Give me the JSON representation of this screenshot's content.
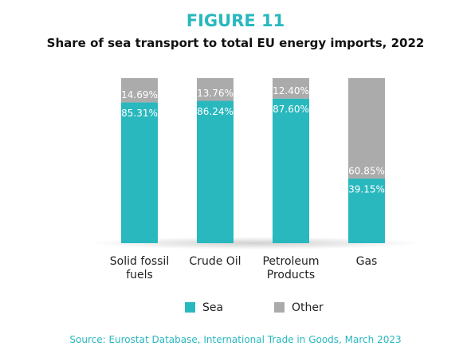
{
  "chart_data": {
    "type": "stacked_bar",
    "title": "FIGURE 11",
    "subtitle": "Share of sea transport to total EU energy imports, 2022",
    "categories": [
      "Solid fossil fuels",
      "Crude Oil",
      "Petroleum Products",
      "Gas"
    ],
    "series": [
      {
        "name": "Sea",
        "color": "#29b8be",
        "values": [
          85.31,
          86.24,
          87.6,
          39.15
        ],
        "value_labels": [
          "85.31%",
          "86.24%",
          "87.60%",
          "39.15%"
        ]
      },
      {
        "name": "Other",
        "color": "#ababab",
        "values": [
          14.69,
          13.76,
          12.4,
          60.85
        ],
        "value_labels": [
          "14.69%",
          "13.76%",
          "12.40%",
          "60.85%"
        ]
      }
    ],
    "ylim": [
      0,
      100
    ],
    "source": "Source: Eurostat Database, International Trade in Goods, March 2023"
  }
}
